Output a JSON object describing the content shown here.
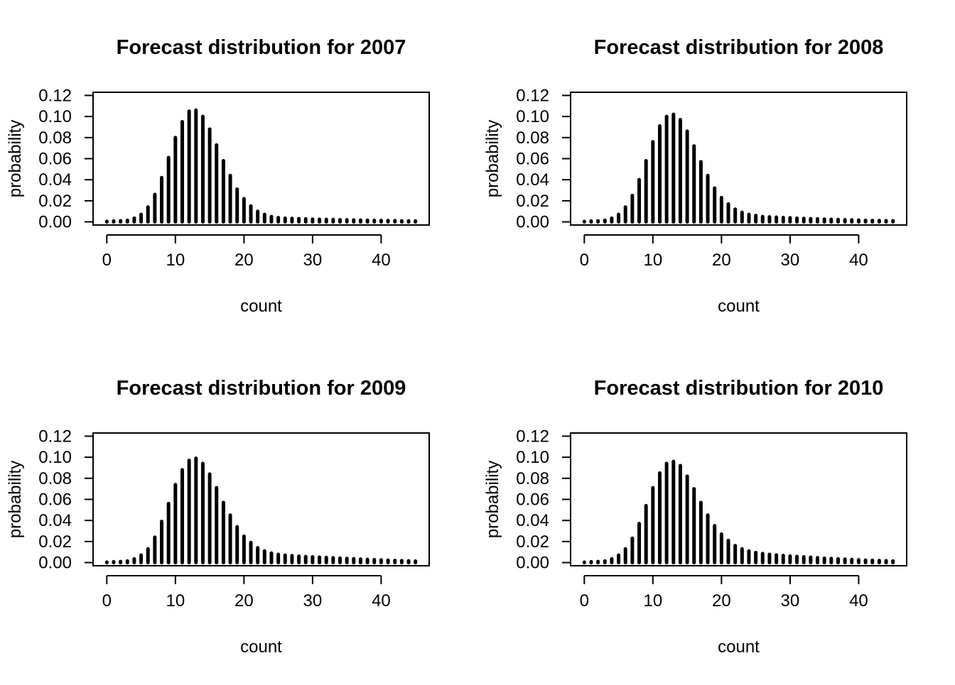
{
  "chart_data": [
    {
      "type": "bar",
      "title": "Forecast distribution for 2007",
      "xlabel": "count",
      "ylabel": "probability",
      "xlim": [
        -2,
        47
      ],
      "ylim": [
        -0.003,
        0.123
      ],
      "xticks": [
        "0",
        "10",
        "20",
        "30",
        "40"
      ],
      "yticks": [
        "0.00",
        "0.02",
        "0.04",
        "0.06",
        "0.08",
        "0.10",
        "0.12"
      ],
      "x": [
        0,
        1,
        2,
        3,
        4,
        5,
        6,
        7,
        8,
        9,
        10,
        11,
        12,
        13,
        14,
        15,
        16,
        17,
        18,
        19,
        20,
        21,
        22,
        23,
        24,
        25,
        26,
        27,
        28,
        29,
        30,
        31,
        32,
        33,
        34,
        35,
        36,
        37,
        38,
        39,
        40,
        41,
        42,
        43,
        44,
        45
      ],
      "values": [
        0.0003,
        0.0008,
        0.001,
        0.0015,
        0.0035,
        0.007,
        0.014,
        0.026,
        0.042,
        0.061,
        0.08,
        0.095,
        0.105,
        0.106,
        0.1,
        0.088,
        0.073,
        0.058,
        0.044,
        0.031,
        0.022,
        0.015,
        0.01,
        0.007,
        0.005,
        0.004,
        0.0035,
        0.0032,
        0.003,
        0.0028,
        0.0026,
        0.0024,
        0.0023,
        0.0022,
        0.002,
        0.0019,
        0.0018,
        0.0016,
        0.0015,
        0.0014,
        0.0013,
        0.0012,
        0.0011,
        0.001,
        0.0009,
        0.0008
      ]
    },
    {
      "type": "bar",
      "title": "Forecast distribution for 2008",
      "xlabel": "count",
      "ylabel": "probability",
      "xlim": [
        -2,
        47
      ],
      "ylim": [
        -0.003,
        0.123
      ],
      "xticks": [
        "0",
        "10",
        "20",
        "30",
        "40"
      ],
      "yticks": [
        "0.00",
        "0.02",
        "0.04",
        "0.06",
        "0.08",
        "0.10",
        "0.12"
      ],
      "x": [
        0,
        1,
        2,
        3,
        4,
        5,
        6,
        7,
        8,
        9,
        10,
        11,
        12,
        13,
        14,
        15,
        16,
        17,
        18,
        19,
        20,
        21,
        22,
        23,
        24,
        25,
        26,
        27,
        28,
        29,
        30,
        31,
        32,
        33,
        34,
        35,
        36,
        37,
        38,
        39,
        40,
        41,
        42,
        43,
        44,
        45
      ],
      "values": [
        0.0003,
        0.0008,
        0.001,
        0.0015,
        0.0035,
        0.007,
        0.014,
        0.025,
        0.04,
        0.058,
        0.076,
        0.091,
        0.1,
        0.102,
        0.097,
        0.086,
        0.072,
        0.057,
        0.044,
        0.032,
        0.023,
        0.017,
        0.012,
        0.009,
        0.007,
        0.006,
        0.005,
        0.0047,
        0.0044,
        0.0041,
        0.0038,
        0.0035,
        0.0032,
        0.003,
        0.0028,
        0.0026,
        0.0024,
        0.0022,
        0.002,
        0.0018,
        0.0016,
        0.0014,
        0.0013,
        0.0012,
        0.0011,
        0.001
      ]
    },
    {
      "type": "bar",
      "title": "Forecast distribution for 2009",
      "xlabel": "count",
      "ylabel": "probability",
      "xlim": [
        -2,
        47
      ],
      "ylim": [
        -0.003,
        0.123
      ],
      "xticks": [
        "0",
        "10",
        "20",
        "30",
        "40"
      ],
      "yticks": [
        "0.00",
        "0.02",
        "0.04",
        "0.06",
        "0.08",
        "0.10",
        "0.12"
      ],
      "x": [
        0,
        1,
        2,
        3,
        4,
        5,
        6,
        7,
        8,
        9,
        10,
        11,
        12,
        13,
        14,
        15,
        16,
        17,
        18,
        19,
        20,
        21,
        22,
        23,
        24,
        25,
        26,
        27,
        28,
        29,
        30,
        31,
        32,
        33,
        34,
        35,
        36,
        37,
        38,
        39,
        40,
        41,
        42,
        43,
        44,
        45
      ],
      "values": [
        0.0003,
        0.0008,
        0.001,
        0.0015,
        0.0035,
        0.007,
        0.013,
        0.024,
        0.039,
        0.056,
        0.074,
        0.088,
        0.097,
        0.099,
        0.094,
        0.084,
        0.071,
        0.057,
        0.045,
        0.034,
        0.025,
        0.019,
        0.014,
        0.011,
        0.009,
        0.0078,
        0.007,
        0.0065,
        0.006,
        0.0057,
        0.0054,
        0.0051,
        0.0048,
        0.0045,
        0.0042,
        0.0039,
        0.0036,
        0.0033,
        0.003,
        0.0027,
        0.0025,
        0.0022,
        0.002,
        0.0018,
        0.0016,
        0.0014
      ]
    },
    {
      "type": "bar",
      "title": "Forecast distribution for 2010",
      "xlabel": "count",
      "ylabel": "probability",
      "xlim": [
        -2,
        47
      ],
      "ylim": [
        -0.003,
        0.123
      ],
      "xticks": [
        "0",
        "10",
        "20",
        "30",
        "40"
      ],
      "yticks": [
        "0.00",
        "0.02",
        "0.04",
        "0.06",
        "0.08",
        "0.10",
        "0.12"
      ],
      "x": [
        0,
        1,
        2,
        3,
        4,
        5,
        6,
        7,
        8,
        9,
        10,
        11,
        12,
        13,
        14,
        15,
        16,
        17,
        18,
        19,
        20,
        21,
        22,
        23,
        24,
        25,
        26,
        27,
        28,
        29,
        30,
        31,
        32,
        33,
        34,
        35,
        36,
        37,
        38,
        39,
        40,
        41,
        42,
        43,
        44,
        45
      ],
      "values": [
        0.0003,
        0.0008,
        0.001,
        0.0015,
        0.0035,
        0.007,
        0.013,
        0.023,
        0.037,
        0.054,
        0.071,
        0.085,
        0.094,
        0.096,
        0.092,
        0.082,
        0.07,
        0.057,
        0.045,
        0.035,
        0.027,
        0.021,
        0.016,
        0.013,
        0.011,
        0.0095,
        0.0085,
        0.0078,
        0.0072,
        0.0067,
        0.0062,
        0.0058,
        0.0054,
        0.005,
        0.0046,
        0.0042,
        0.0038,
        0.0035,
        0.0032,
        0.0029,
        0.0026,
        0.0023,
        0.0021,
        0.0019,
        0.0017,
        0.0015
      ]
    }
  ]
}
